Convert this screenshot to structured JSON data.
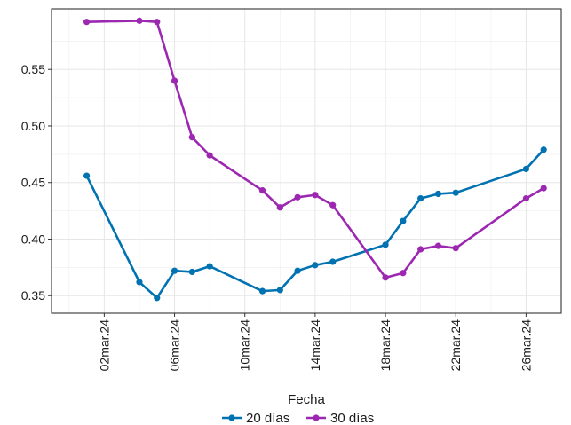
{
  "chart_data": {
    "type": "line",
    "xlabel": "Fecha",
    "ylabel": "",
    "x_axis": {
      "ticks": [
        "2024-03-02",
        "2024-03-06",
        "2024-03-10",
        "2024-03-14",
        "2024-03-18",
        "2024-03-22",
        "2024-03-26"
      ],
      "tick_labels": [
        "02mar.24",
        "06mar.24",
        "10mar.24",
        "14mar.24",
        "18mar.24",
        "22mar.24",
        "26mar.24"
      ],
      "range": [
        "2024-02-28",
        "2024-03-28"
      ]
    },
    "y_axis": {
      "ticks": [
        0.35,
        0.4,
        0.45,
        0.5,
        0.55
      ],
      "tick_labels": [
        "0.35",
        "0.40",
        "0.45",
        "0.50",
        "0.55"
      ],
      "ylim": [
        0.3345,
        0.6035
      ]
    },
    "grid": true,
    "legend_position": "bottom",
    "series": [
      {
        "name": "20 días",
        "color": "#0072B2",
        "points": [
          {
            "x": "2024-03-01",
            "y": 0.456
          },
          {
            "x": "2024-03-04",
            "y": 0.362
          },
          {
            "x": "2024-03-05",
            "y": 0.348
          },
          {
            "x": "2024-03-06",
            "y": 0.372
          },
          {
            "x": "2024-03-07",
            "y": 0.371
          },
          {
            "x": "2024-03-08",
            "y": 0.376
          },
          {
            "x": "2024-03-11",
            "y": 0.354
          },
          {
            "x": "2024-03-12",
            "y": 0.355
          },
          {
            "x": "2024-03-13",
            "y": 0.372
          },
          {
            "x": "2024-03-14",
            "y": 0.377
          },
          {
            "x": "2024-03-15",
            "y": 0.38
          },
          {
            "x": "2024-03-18",
            "y": 0.395
          },
          {
            "x": "2024-03-19",
            "y": 0.416
          },
          {
            "x": "2024-03-20",
            "y": 0.436
          },
          {
            "x": "2024-03-21",
            "y": 0.44
          },
          {
            "x": "2024-03-22",
            "y": 0.441
          },
          {
            "x": "2024-03-26",
            "y": 0.462
          },
          {
            "x": "2024-03-27",
            "y": 0.479
          }
        ]
      },
      {
        "name": "30 días",
        "color": "#9C27B0",
        "points": [
          {
            "x": "2024-03-01",
            "y": 0.592
          },
          {
            "x": "2024-03-04",
            "y": 0.593
          },
          {
            "x": "2024-03-05",
            "y": 0.592
          },
          {
            "x": "2024-03-06",
            "y": 0.54
          },
          {
            "x": "2024-03-07",
            "y": 0.49
          },
          {
            "x": "2024-03-08",
            "y": 0.474
          },
          {
            "x": "2024-03-11",
            "y": 0.443
          },
          {
            "x": "2024-03-12",
            "y": 0.428
          },
          {
            "x": "2024-03-13",
            "y": 0.437
          },
          {
            "x": "2024-03-14",
            "y": 0.439
          },
          {
            "x": "2024-03-15",
            "y": 0.43
          },
          {
            "x": "2024-03-18",
            "y": 0.366
          },
          {
            "x": "2024-03-19",
            "y": 0.37
          },
          {
            "x": "2024-03-20",
            "y": 0.391
          },
          {
            "x": "2024-03-21",
            "y": 0.394
          },
          {
            "x": "2024-03-22",
            "y": 0.392
          },
          {
            "x": "2024-03-26",
            "y": 0.436
          },
          {
            "x": "2024-03-27",
            "y": 0.445
          }
        ]
      }
    ]
  }
}
